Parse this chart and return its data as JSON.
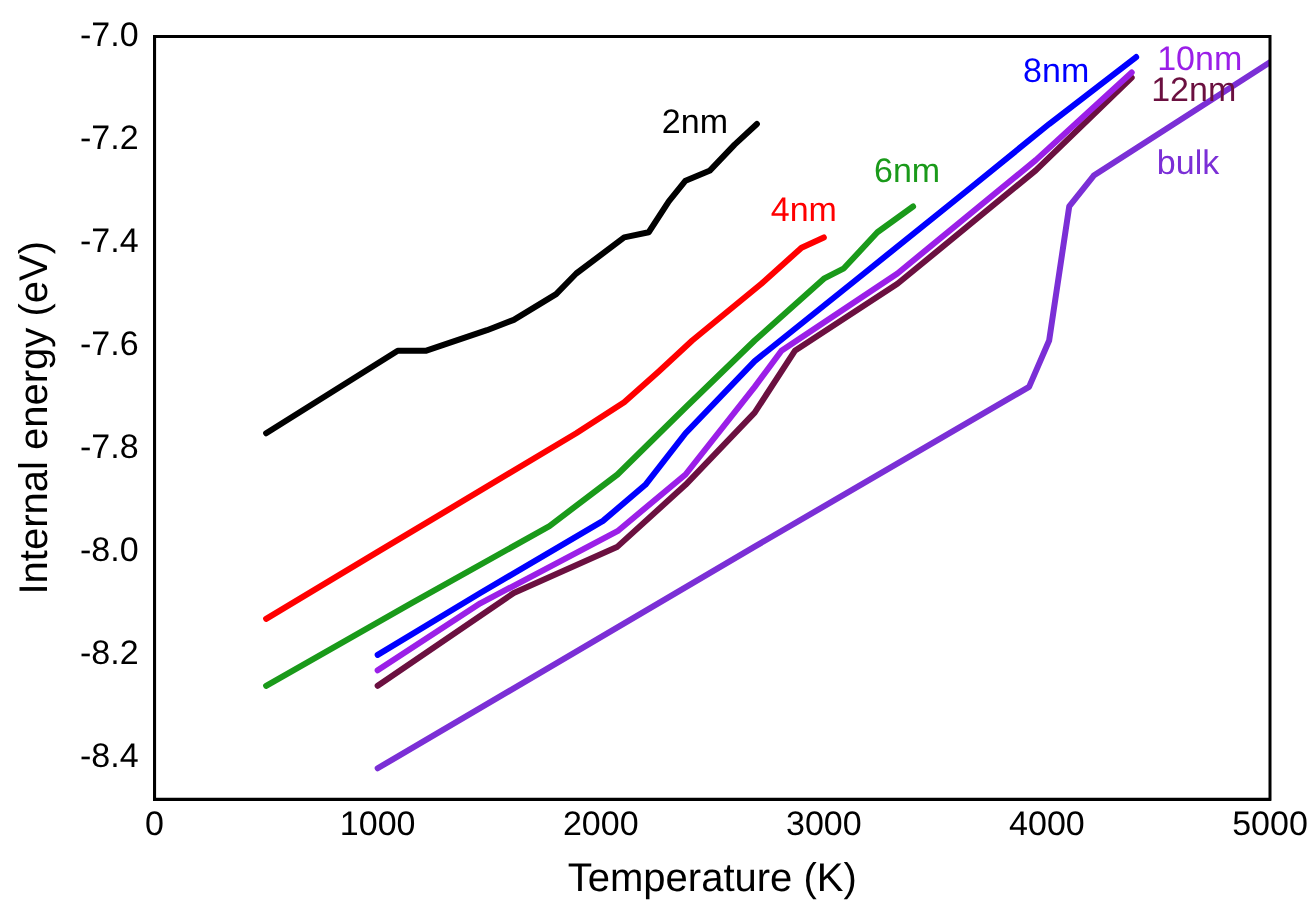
{
  "chart_data": {
    "type": "line",
    "xlabel": "Temperature (K)",
    "ylabel": "Internal energy (eV)",
    "xlim": [
      0,
      5000
    ],
    "xticks": [
      0,
      1000,
      2000,
      3000,
      4000,
      5000
    ],
    "ylim": [
      -8.48,
      -7.0
    ],
    "yticks": [
      {
        "value": -8.4,
        "label": "-8.4"
      },
      {
        "value": -8.2,
        "label": "-8.2"
      },
      {
        "value": -8.0,
        "label": "-8.0"
      },
      {
        "value": -7.8,
        "label": "-7.8"
      },
      {
        "value": -7.6,
        "label": "-7.6"
      },
      {
        "value": -7.4,
        "label": "-7.4"
      },
      {
        "value": -7.2,
        "label": "-7.2"
      },
      {
        "value": -7.0,
        "label": "-7.0"
      }
    ],
    "grid": false,
    "legend": false,
    "marker": "none",
    "line_style": "solid",
    "series": [
      {
        "name": "2nm",
        "color": "#000000",
        "x": [
          500,
          1090,
          1215,
          1490,
          1610,
          1800,
          1890,
          2105,
          2215,
          2305,
          2380,
          2490,
          2600,
          2700
        ],
        "values": [
          -7.77,
          -7.61,
          -7.61,
          -7.57,
          -7.55,
          -7.5,
          -7.46,
          -7.39,
          -7.38,
          -7.32,
          -7.28,
          -7.26,
          -7.21,
          -7.17
        ]
      },
      {
        "name": "4nm",
        "color": "#ff0000",
        "x": [
          500,
          1000,
          1310,
          1890,
          2105,
          2260,
          2410,
          2720,
          2900,
          3000
        ],
        "values": [
          -8.13,
          -8.0,
          -7.92,
          -7.77,
          -7.71,
          -7.65,
          -7.59,
          -7.48,
          -7.41,
          -7.39
        ]
      },
      {
        "name": "6nm",
        "color": "#1a9a1a",
        "x": [
          500,
          1150,
          1770,
          2075,
          2380,
          2690,
          3000,
          3090,
          3240,
          3400
        ],
        "values": [
          -8.26,
          -8.1,
          -7.95,
          -7.85,
          -7.72,
          -7.59,
          -7.47,
          -7.45,
          -7.38,
          -7.33
        ]
      },
      {
        "name": "8nm",
        "color": "#0000ff",
        "x": [
          1000,
          1460,
          2010,
          2200,
          2380,
          2690,
          3180,
          3640,
          4010,
          4400
        ],
        "values": [
          -8.2,
          -8.08,
          -7.94,
          -7.87,
          -7.77,
          -7.63,
          -7.46,
          -7.3,
          -7.17,
          -7.04
        ]
      },
      {
        "name": "10nm",
        "color": "#9b1fe8",
        "x": [
          1000,
          1460,
          2075,
          2380,
          2690,
          2810,
          3330,
          3950,
          4380
        ],
        "values": [
          -8.23,
          -8.1,
          -7.96,
          -7.85,
          -7.68,
          -7.61,
          -7.46,
          -7.24,
          -7.07
        ]
      },
      {
        "name": "12nm",
        "color": "#6b1040",
        "x": [
          1000,
          1610,
          2075,
          2380,
          2690,
          2870,
          3330,
          3950,
          4380
        ],
        "values": [
          -8.26,
          -8.08,
          -7.99,
          -7.87,
          -7.73,
          -7.61,
          -7.48,
          -7.26,
          -7.08
        ]
      },
      {
        "name": "bulk",
        "color": "#7b2fd6",
        "x": [
          1000,
          2690,
          3920,
          4010,
          4100,
          4210,
          5000
        ],
        "values": [
          -8.42,
          -7.99,
          -7.68,
          -7.59,
          -7.33,
          -7.27,
          -7.05
        ]
      }
    ]
  }
}
